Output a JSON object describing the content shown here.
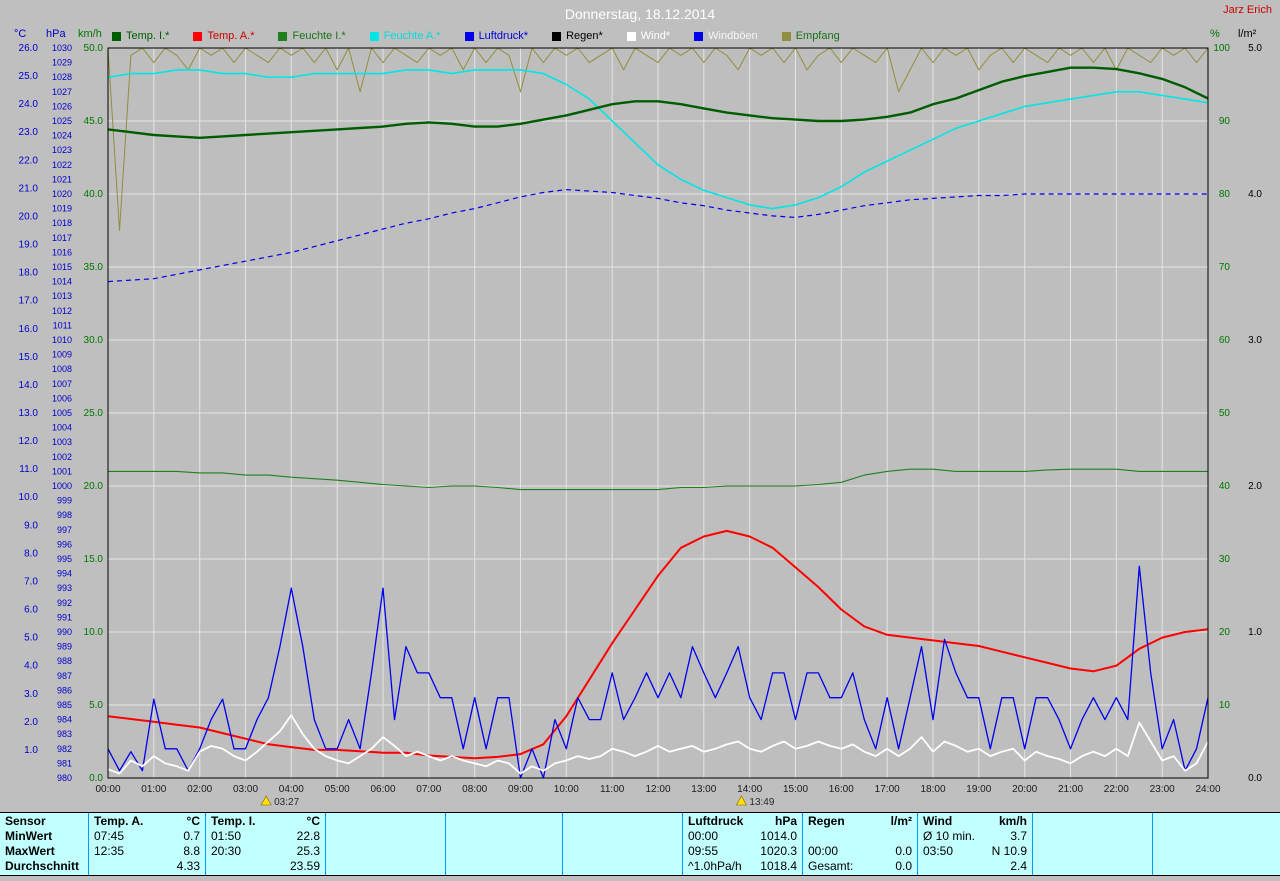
{
  "window": {
    "title": "Donnerstag, 18.12.2014",
    "watermark": "Jarz Erich"
  },
  "legend": {
    "items": [
      {
        "label": "Temp. I.*",
        "color": "#005c00",
        "text": "#005c00"
      },
      {
        "label": "Temp. A.*",
        "color": "#ff0000",
        "text": "#cc0000"
      },
      {
        "label": "Feuchte I.*",
        "color": "#208020",
        "text": "#1c701c"
      },
      {
        "label": "Feuchte A.*",
        "color": "#00e6e6",
        "text": "#00dcdc"
      },
      {
        "label": "Luftdruck*",
        "color": "#0000ee",
        "text": "#0000dd"
      },
      {
        "label": "Regen*",
        "color": "#000000",
        "text": "#000000"
      },
      {
        "label": "Wind*",
        "color": "#ffffff",
        "text": "#ffffff"
      },
      {
        "label": "Windböen",
        "color": "#0000ee",
        "text": "#f5f5f5"
      },
      {
        "label": "Empfang",
        "color": "#8f8f3f",
        "text": "#1c701c"
      }
    ]
  },
  "chart_data": {
    "type": "line",
    "title": "Donnerstag, 18.12.2014",
    "x_range": [
      0,
      24
    ],
    "x_ticks": [
      "00:00",
      "01:00",
      "02:00",
      "03:00",
      "04:00",
      "05:00",
      "06:00",
      "07:00",
      "08:00",
      "09:00",
      "10:00",
      "11:00",
      "12:00",
      "13:00",
      "14:00",
      "15:00",
      "16:00",
      "17:00",
      "18:00",
      "19:00",
      "20:00",
      "21:00",
      "22:00",
      "23:00",
      "24:00"
    ],
    "axes": {
      "celsius": {
        "label": "°C",
        "min": 0,
        "max": 26,
        "color": "#0000cc",
        "fmt": 1,
        "ticks": [
          26,
          25,
          24,
          23,
          22,
          21,
          20,
          19,
          18,
          17,
          16,
          15,
          14,
          13,
          12,
          11,
          10,
          9,
          8,
          7,
          6,
          5,
          4,
          3,
          2,
          1
        ]
      },
      "hpa": {
        "label": "hPa",
        "min": 980,
        "max": 1030,
        "color": "#0000cc",
        "fmt": 0,
        "ticks": [
          1030,
          1029,
          1028,
          1027,
          1026,
          1025,
          1024,
          1023,
          1022,
          1021,
          1020,
          1019,
          1018,
          1017,
          1016,
          1015,
          1014,
          1013,
          1012,
          1011,
          1010,
          1009,
          1008,
          1007,
          1006,
          1005,
          1004,
          1003,
          1002,
          1001,
          1000,
          999,
          998,
          997,
          996,
          995,
          994,
          993,
          992,
          991,
          990,
          989,
          988,
          987,
          986,
          985,
          984,
          983,
          982,
          981,
          980
        ]
      },
      "kmh": {
        "label": "km/h",
        "min": 0,
        "max": 50,
        "color": "#007700",
        "fmt": 1,
        "ticks": [
          50,
          45,
          40,
          35,
          30,
          25,
          20,
          15,
          10,
          5,
          0
        ]
      },
      "pct": {
        "label": "%",
        "min": 0,
        "max": 100,
        "color": "#007700",
        "fmt": 0,
        "ticks": [
          100,
          90,
          80,
          70,
          60,
          50,
          40,
          30,
          20,
          10
        ]
      },
      "lm2": {
        "label": "l/m²",
        "min": 0,
        "max": 5,
        "color": "#000000",
        "fmt": 1,
        "ticks": [
          5,
          4,
          3,
          2,
          1,
          0
        ]
      }
    },
    "sun_markers": [
      {
        "t": 3.45,
        "label": "03:27"
      },
      {
        "t": 13.82,
        "label": "13:49"
      }
    ],
    "series": [
      {
        "key": "empfang",
        "name": "Empfang",
        "axis": "pct",
        "color": "#8f8f3f",
        "width": 1,
        "start": 0,
        "step": 0.25,
        "values": [
          100,
          75,
          99,
          100,
          98,
          100,
          99,
          97,
          100,
          99,
          100,
          98,
          100,
          99,
          98,
          100,
          99,
          100,
          98,
          100,
          97,
          100,
          94,
          100,
          98,
          100,
          99,
          98,
          100,
          99,
          100,
          97,
          100,
          98,
          100,
          99,
          94,
          100,
          98,
          100,
          99,
          100,
          98,
          99,
          100,
          97,
          100,
          99,
          98,
          100,
          99,
          100,
          98,
          100,
          99,
          97,
          100,
          99,
          100,
          98,
          100,
          97,
          99,
          100,
          98,
          100,
          99,
          98,
          100,
          94,
          97,
          100,
          98,
          100,
          99,
          100,
          97,
          99,
          100,
          98,
          100,
          99,
          98,
          100,
          99,
          100,
          98,
          100,
          97,
          100,
          99,
          98,
          100,
          99,
          100,
          98,
          100
        ]
      },
      {
        "key": "luftdruck",
        "name": "Luftdruck",
        "axis": "hpa",
        "color": "#0000ee",
        "width": 1.2,
        "dash": "5 4",
        "start": 0,
        "step": 0.5,
        "values": [
          1014.0,
          1014.1,
          1014.2,
          1014.5,
          1014.8,
          1015.1,
          1015.4,
          1015.7,
          1016.0,
          1016.4,
          1016.8,
          1017.2,
          1017.6,
          1018.0,
          1018.3,
          1018.7,
          1019.0,
          1019.4,
          1019.8,
          1020.1,
          1020.3,
          1020.2,
          1020.1,
          1019.9,
          1019.7,
          1019.4,
          1019.2,
          1018.9,
          1018.7,
          1018.5,
          1018.4,
          1018.6,
          1018.9,
          1019.2,
          1019.4,
          1019.6,
          1019.7,
          1019.8,
          1019.9,
          1019.9,
          1020.0,
          1020.0,
          1020.0,
          1020.0,
          1020.0,
          1020.0,
          1020.0,
          1020.0,
          1020.0
        ]
      },
      {
        "key": "feuchte_a",
        "name": "Feuchte A.",
        "axis": "pct",
        "color": "#00e6e6",
        "width": 1.6,
        "start": 0,
        "step": 0.5,
        "values": [
          96,
          96.5,
          96.5,
          97,
          97,
          96.5,
          96.5,
          96,
          96,
          96.5,
          96.5,
          96.5,
          96.5,
          97,
          97,
          96.5,
          97,
          97,
          97,
          96.5,
          95,
          93,
          90,
          87,
          84,
          82,
          80.5,
          79.5,
          78.5,
          78,
          78.5,
          79.5,
          81,
          83,
          84.5,
          86,
          87.5,
          89,
          90,
          91,
          92,
          92.5,
          93,
          93.5,
          94,
          94,
          93.5,
          93,
          92.5
        ]
      },
      {
        "key": "feuchte_i",
        "name": "Feuchte I.",
        "axis": "pct",
        "color": "#208020",
        "width": 1.1,
        "start": 0,
        "step": 0.5,
        "values": [
          42,
          42,
          42,
          42,
          41.8,
          41.8,
          41.5,
          41.5,
          41.2,
          41,
          40.8,
          40.5,
          40.2,
          40,
          39.8,
          40,
          40,
          39.8,
          39.5,
          39.5,
          39.5,
          39.5,
          39.5,
          39.5,
          39.5,
          39.8,
          39.8,
          40,
          40,
          40,
          40,
          40.2,
          40.5,
          41.5,
          42,
          42.3,
          42.3,
          42,
          42,
          42,
          42,
          42.2,
          42.3,
          42.3,
          42.3,
          42,
          42,
          42,
          42
        ]
      },
      {
        "key": "temp_i",
        "name": "Temp. I.",
        "axis": "celsius",
        "color": "#005c00",
        "width": 2.4,
        "start": 0,
        "step": 0.5,
        "values": [
          23.1,
          23.0,
          22.9,
          22.85,
          22.8,
          22.85,
          22.9,
          22.95,
          23.0,
          23.05,
          23.1,
          23.15,
          23.2,
          23.3,
          23.35,
          23.3,
          23.2,
          23.2,
          23.3,
          23.45,
          23.6,
          23.8,
          24.0,
          24.1,
          24.1,
          24.0,
          23.85,
          23.7,
          23.6,
          23.5,
          23.45,
          23.4,
          23.4,
          23.45,
          23.55,
          23.7,
          24.0,
          24.2,
          24.5,
          24.8,
          25.0,
          25.15,
          25.3,
          25.3,
          25.25,
          25.1,
          24.9,
          24.6,
          24.2
        ]
      },
      {
        "key": "regen",
        "name": "Regen",
        "axis": "lm2",
        "color": "#000000",
        "width": 1,
        "start": 0,
        "step": 24,
        "values": [
          0,
          0
        ]
      },
      {
        "key": "temp_a",
        "name": "Temp. A.",
        "axis": "celsius",
        "color": "#ff0000",
        "width": 2,
        "start": 0,
        "step": 0.5,
        "values": [
          2.2,
          2.1,
          2.0,
          1.9,
          1.8,
          1.6,
          1.4,
          1.2,
          1.1,
          1.0,
          1.0,
          0.95,
          0.9,
          0.9,
          0.8,
          0.75,
          0.7,
          0.75,
          0.85,
          1.2,
          2.2,
          3.5,
          4.8,
          6.0,
          7.2,
          8.2,
          8.6,
          8.8,
          8.6,
          8.2,
          7.5,
          6.8,
          6.0,
          5.4,
          5.1,
          5.0,
          4.9,
          4.8,
          4.7,
          4.5,
          4.3,
          4.1,
          3.9,
          3.8,
          4.0,
          4.6,
          5.0,
          5.2,
          5.3
        ]
      },
      {
        "key": "windboen",
        "name": "Windböen",
        "axis": "kmh",
        "color": "#0000ee",
        "width": 1.3,
        "start": 0,
        "step": 0.25,
        "values": [
          2,
          0.5,
          1.8,
          0.5,
          5.4,
          2,
          2,
          0.5,
          2,
          4,
          5.4,
          2,
          2,
          4,
          5.5,
          9,
          13,
          9,
          4,
          2,
          2,
          4,
          2,
          7.2,
          13,
          4,
          9,
          7.2,
          7.2,
          5.5,
          5.5,
          2,
          5.5,
          2,
          5.5,
          5.5,
          0,
          2,
          0,
          4,
          2,
          5.5,
          4,
          4,
          7.2,
          4,
          5.5,
          7.2,
          5.5,
          7.2,
          5.5,
          9,
          7.2,
          5.5,
          7.2,
          9,
          5.5,
          4,
          7.2,
          7.2,
          4,
          7.2,
          7.2,
          5.5,
          5.5,
          7.2,
          4,
          2,
          5.5,
          2,
          5.5,
          9,
          4,
          9.5,
          7.2,
          5.5,
          5.5,
          2,
          5.5,
          5.5,
          2,
          5.5,
          5.5,
          4,
          2,
          4,
          5.5,
          4,
          5.5,
          4,
          14.5,
          7.2,
          2,
          4,
          0.5,
          2,
          5.5
        ]
      },
      {
        "key": "wind",
        "name": "Wind",
        "axis": "kmh",
        "color": "#ffffff",
        "width": 1.8,
        "start": 0,
        "step": 0.25,
        "values": [
          0.6,
          0.3,
          1.2,
          0.8,
          1.5,
          1.0,
          0.8,
          0.5,
          1.8,
          2.2,
          2.0,
          1.5,
          1.2,
          1.8,
          2.5,
          3.2,
          4.3,
          3.0,
          2.0,
          1.5,
          1.2,
          1.0,
          1.5,
          2.0,
          2.8,
          2.2,
          1.5,
          1.8,
          1.5,
          1.2,
          1.5,
          1.2,
          1.0,
          0.8,
          1.2,
          1.0,
          0.3,
          0.8,
          0.5,
          1.0,
          1.2,
          1.5,
          1.3,
          1.5,
          2.0,
          1.8,
          1.5,
          1.8,
          2.2,
          1.8,
          2.0,
          2.2,
          1.8,
          2.0,
          2.3,
          2.5,
          2.0,
          1.8,
          2.2,
          2.5,
          2.0,
          2.2,
          2.5,
          2.2,
          2.0,
          2.3,
          1.8,
          1.5,
          2.0,
          1.5,
          2.0,
          2.8,
          1.8,
          2.5,
          2.2,
          1.8,
          2.0,
          1.5,
          1.8,
          2.0,
          1.2,
          1.8,
          1.5,
          1.3,
          1.0,
          1.5,
          1.8,
          1.5,
          2.0,
          1.5,
          3.8,
          2.5,
          1.2,
          1.5,
          0.5,
          1.0,
          2.5
        ]
      }
    ]
  },
  "table": {
    "row_labels": [
      "Sensor",
      "MinWert",
      "MaxWert",
      "Durchschnitt"
    ],
    "columns": [
      {
        "name": "Temp. A.",
        "unit": "°C",
        "rows": [
          [
            "07:45",
            "0.7"
          ],
          [
            "12:35",
            "8.8"
          ],
          [
            "",
            "4.33"
          ]
        ]
      },
      {
        "name": "Temp. I.",
        "unit": "°C",
        "rows": [
          [
            "01:50",
            "22.8"
          ],
          [
            "20:30",
            "25.3"
          ],
          [
            "",
            "23.59"
          ]
        ]
      },
      {
        "name": "Luftdruck",
        "unit": "hPa",
        "rows": [
          [
            "00:00",
            "1014.0"
          ],
          [
            "09:55",
            "1020.3"
          ],
          [
            "^1.0hPa/h",
            "1018.4"
          ]
        ]
      },
      {
        "name": "Regen",
        "unit": "l/m²",
        "rows": [
          [
            "",
            ""
          ],
          [
            "00:00",
            "0.0"
          ],
          [
            "Gesamt:",
            "0.0"
          ]
        ]
      },
      {
        "name": "Wind",
        "unit": "km/h",
        "rows": [
          [
            "Ø 10 min.",
            "3.7"
          ],
          [
            "03:50",
            "N 10.9"
          ],
          [
            "",
            "2.4"
          ]
        ]
      }
    ]
  }
}
